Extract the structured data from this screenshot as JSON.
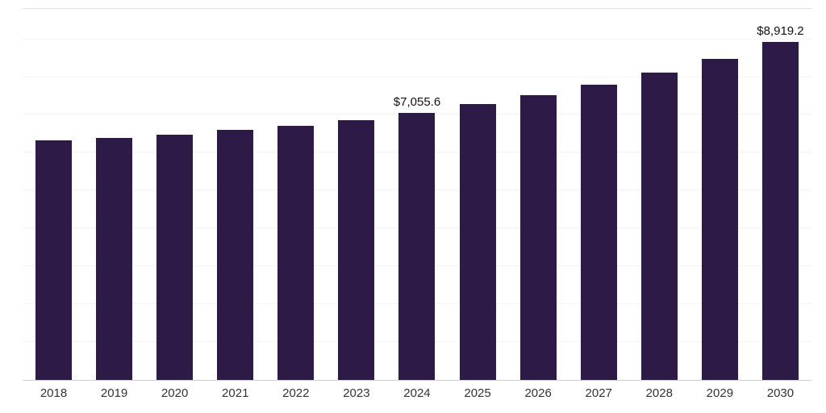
{
  "chart_data": {
    "type": "bar",
    "title": "",
    "xlabel": "",
    "ylabel": "",
    "categories": [
      "2018",
      "2019",
      "2020",
      "2021",
      "2022",
      "2023",
      "2024",
      "2025",
      "2026",
      "2027",
      "2028",
      "2029",
      "2030"
    ],
    "values": [
      6330,
      6390,
      6470,
      6600,
      6710,
      6860,
      7055.6,
      7280,
      7520,
      7800,
      8110,
      8490,
      8919.2
    ],
    "data_labels": {
      "2024": "$7,055.6",
      "2030": "$8,919.2"
    },
    "bar_color": "#2e1a47",
    "data_label_color": "#111111",
    "tick_label_color": "#333333",
    "gridline_color": "#f3f3f3",
    "ylim": [
      0,
      9800
    ],
    "grid_step": 1000,
    "grid": true,
    "legend": false
  }
}
